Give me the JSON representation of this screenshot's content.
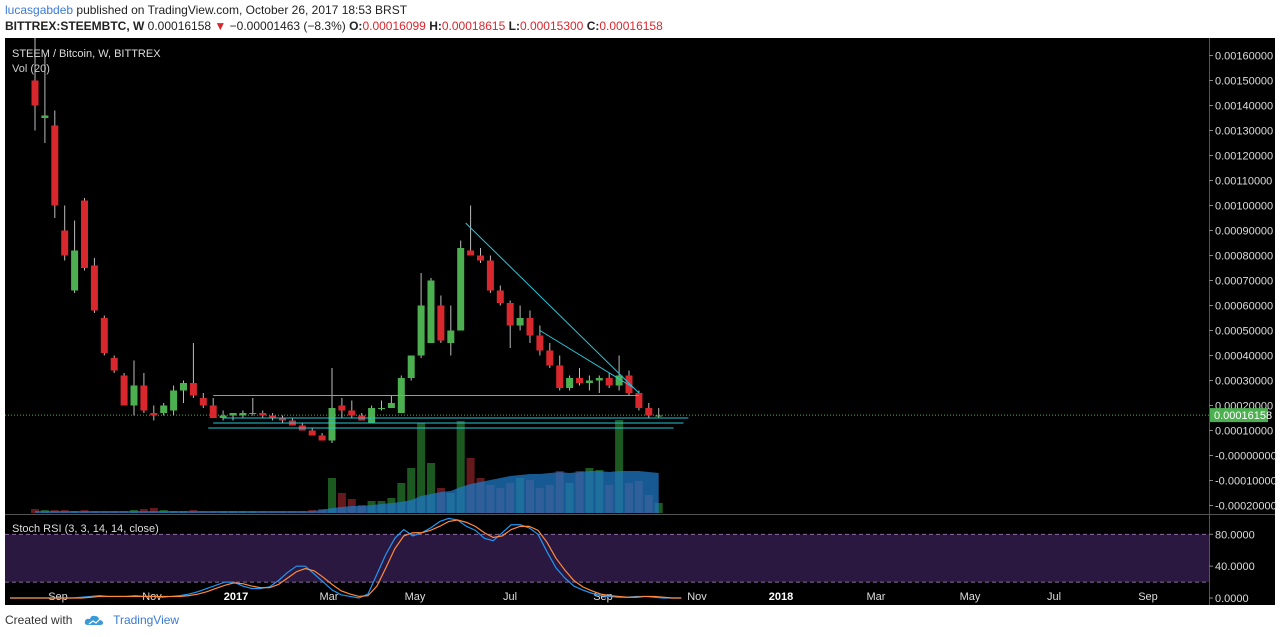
{
  "header": {
    "username": "lucasgabdeb",
    "published": "published on TradingView.com, October 26, 2017 18:53 BRST",
    "symbol": "BITTREX:STEEMBTC, W",
    "price": "0.00016158",
    "change": "−0.00001463 (−8.3%)",
    "o_label": "O:",
    "o_value": "0.00016099",
    "h_label": "H:",
    "h_value": "0.00018615",
    "l_label": "L:",
    "l_value": "0.00015300",
    "c_label": "C:",
    "c_value": "0.00016158"
  },
  "footer": {
    "created_with": "Created with",
    "brand": "TradingView"
  },
  "colors": {
    "background": "#000000",
    "up": "#4caf50",
    "down": "#d9272e",
    "volume_ma": "#1f77c4",
    "trendline": "#26c6da",
    "stoch_k": "#2196f3",
    "stoch_d": "#ff8a3d",
    "stoch_band": "#2a1840",
    "last_price_bg": "#4caf50"
  },
  "chart_data": [
    {
      "type": "candlestick",
      "title": "STEEM / Bitcoin, W, BITTREX",
      "indicator_label": "Vol (20)",
      "y_ticks": [
        "0.00160000",
        "0.00150000",
        "0.00140000",
        "0.00130000",
        "0.00120000",
        "0.00110000",
        "0.00100000",
        "0.00090000",
        "0.00080000",
        "0.00070000",
        "0.00060000",
        "0.00050000",
        "0.00040000",
        "0.00030000",
        "0.00020000",
        "0.00010000",
        "-0.00000000",
        "-0.00010000",
        "-0.00020000"
      ],
      "ylim": [
        -0.00023,
        0.00167
      ],
      "x_ticks": [
        "Sep",
        "Nov",
        "2017",
        "Mar",
        "May",
        "Jul",
        "Sep",
        "Nov",
        "2018",
        "Mar",
        "May",
        "Jul",
        "Sep"
      ],
      "last_price": "0.00016158",
      "last_price_value": 0.00016158,
      "candles": [
        [
          0.0015,
          0.00167,
          0.0013,
          0.0014
        ],
        [
          0.00135,
          0.0016,
          0.00125,
          0.00136
        ],
        [
          0.00132,
          0.00138,
          0.00095,
          0.001
        ],
        [
          0.0009,
          0.001,
          0.00078,
          0.0008
        ],
        [
          0.00066,
          0.00094,
          0.00065,
          0.00082
        ],
        [
          0.00102,
          0.00103,
          0.00074,
          0.00075
        ],
        [
          0.00076,
          0.00079,
          0.00057,
          0.00058
        ],
        [
          0.00055,
          0.00056,
          0.0004,
          0.00041
        ],
        [
          0.00039,
          0.0004,
          0.00033,
          0.00034
        ],
        [
          0.00032,
          0.00033,
          0.0002,
          0.0002
        ],
        [
          0.0002,
          0.00038,
          0.00016,
          0.00028
        ],
        [
          0.00028,
          0.00033,
          0.00017,
          0.00018
        ],
        [
          0.00017,
          0.0002,
          0.00014,
          0.00016
        ],
        [
          0.00017,
          0.00021,
          0.00016,
          0.0002
        ],
        [
          0.00018,
          0.00028,
          0.00016,
          0.00026
        ],
        [
          0.00026,
          0.0003,
          0.00021,
          0.00029
        ],
        [
          0.00029,
          0.00045,
          0.00023,
          0.00024
        ],
        [
          0.00023,
          0.00025,
          0.00019,
          0.0002
        ],
        [
          0.0002,
          0.00023,
          0.00015,
          0.00015
        ],
        [
          0.00015,
          0.00018,
          0.00014,
          0.00016
        ],
        [
          0.00016,
          0.00017,
          0.00014,
          0.00017
        ],
        [
          0.00016,
          0.00018,
          0.00015,
          0.00017
        ],
        [
          0.00017,
          0.00023,
          0.00016,
          0.00017
        ],
        [
          0.00017,
          0.00018,
          0.00015,
          0.00016
        ],
        [
          0.00016,
          0.00017,
          0.00014,
          0.00015
        ],
        [
          0.00015,
          0.00016,
          0.00013,
          0.00014
        ],
        [
          0.00014,
          0.00015,
          0.00012,
          0.00012
        ],
        [
          0.00012,
          0.00013,
          0.0001,
          0.0001
        ],
        [
          0.0001,
          0.00011,
          8e-05,
          8e-05
        ],
        [
          8e-05,
          9e-05,
          6e-05,
          6e-05
        ],
        [
          6e-05,
          0.00035,
          5e-05,
          0.00019
        ],
        [
          0.0002,
          0.00023,
          0.00015,
          0.00018
        ],
        [
          0.00018,
          0.00022,
          0.00015,
          0.00016
        ],
        [
          0.00016,
          0.00017,
          0.00014,
          0.00014
        ],
        [
          0.00013,
          0.0002,
          0.00013,
          0.00019
        ],
        [
          0.00019,
          0.00022,
          0.00018,
          0.00019
        ],
        [
          0.00019,
          0.00024,
          0.00019,
          0.00021
        ],
        [
          0.00017,
          0.00032,
          0.00017,
          0.00031
        ],
        [
          0.00031,
          0.0004,
          0.0003,
          0.0004
        ],
        [
          0.0004,
          0.00073,
          0.00039,
          0.0006
        ],
        [
          0.00045,
          0.00071,
          0.00045,
          0.0007
        ],
        [
          0.0006,
          0.00064,
          0.00045,
          0.00046
        ],
        [
          0.00045,
          0.0006,
          0.0004,
          0.0005
        ],
        [
          0.0005,
          0.00086,
          0.0005,
          0.00083
        ],
        [
          0.00082,
          0.001,
          0.0008,
          0.0008
        ],
        [
          0.0008,
          0.00083,
          0.00077,
          0.00078
        ],
        [
          0.00078,
          0.0008,
          0.00065,
          0.00066
        ],
        [
          0.00066,
          0.00068,
          0.0006,
          0.00061
        ],
        [
          0.00061,
          0.00062,
          0.00043,
          0.00052
        ],
        [
          0.00052,
          0.0006,
          0.0005,
          0.00055
        ],
        [
          0.00055,
          0.00058,
          0.00045,
          0.00048
        ],
        [
          0.00048,
          0.00052,
          0.0004,
          0.00042
        ],
        [
          0.00042,
          0.00045,
          0.00035,
          0.00036
        ],
        [
          0.00036,
          0.0004,
          0.00026,
          0.00027
        ],
        [
          0.00027,
          0.00032,
          0.00026,
          0.00031
        ],
        [
          0.00031,
          0.00035,
          0.00028,
          0.00029
        ],
        [
          0.00029,
          0.00032,
          0.00026,
          0.0003
        ],
        [
          0.0003,
          0.00032,
          0.00025,
          0.00031
        ],
        [
          0.00031,
          0.00033,
          0.00027,
          0.00028
        ],
        [
          0.00028,
          0.0004,
          0.00026,
          0.00032
        ],
        [
          0.00032,
          0.00034,
          0.00024,
          0.00025
        ],
        [
          0.00025,
          0.00026,
          0.00018,
          0.00019
        ],
        [
          0.00019,
          0.00021,
          0.00015,
          0.00016
        ],
        [
          0.00016,
          0.00019,
          0.00015,
          0.00016
        ]
      ],
      "volume": [
        0.04,
        0.03,
        0.03,
        0.03,
        0.02,
        0.03,
        0.02,
        0.02,
        0.02,
        0.02,
        0.03,
        0.04,
        0.05,
        0.03,
        0.02,
        0.02,
        0.03,
        0.02,
        0.02,
        0.02,
        0.02,
        0.02,
        0.02,
        0.02,
        0.02,
        0.02,
        0.02,
        0.02,
        0.03,
        0.04,
        0.35,
        0.2,
        0.14,
        0.08,
        0.12,
        0.12,
        0.15,
        0.3,
        0.45,
        0.9,
        0.5,
        0.25,
        0.2,
        0.92,
        0.55,
        0.35,
        0.28,
        0.25,
        0.3,
        0.35,
        0.33,
        0.25,
        0.28,
        0.42,
        0.3,
        0.42,
        0.45,
        0.43,
        0.28,
        0.93,
        0.3,
        0.32,
        0.18,
        0.1
      ],
      "volume_ma": [
        0.02,
        0.02,
        0.02,
        0.02,
        0.02,
        0.02,
        0.02,
        0.02,
        0.02,
        0.02,
        0.02,
        0.02,
        0.02,
        0.02,
        0.02,
        0.02,
        0.02,
        0.02,
        0.02,
        0.02,
        0.02,
        0.02,
        0.02,
        0.02,
        0.02,
        0.02,
        0.02,
        0.02,
        0.02,
        0.03,
        0.05,
        0.06,
        0.07,
        0.07,
        0.08,
        0.09,
        0.1,
        0.11,
        0.13,
        0.17,
        0.19,
        0.21,
        0.22,
        0.26,
        0.29,
        0.31,
        0.33,
        0.35,
        0.37,
        0.38,
        0.39,
        0.39,
        0.4,
        0.41,
        0.4,
        0.41,
        0.42,
        0.42,
        0.41,
        0.42,
        0.42,
        0.42,
        0.41,
        0.4
      ],
      "trendlines": [
        {
          "from": [
            43.5,
            0.00093
          ],
          "to": [
            61,
            0.00025
          ]
        },
        {
          "from": [
            51,
            0.0005
          ],
          "to": [
            60.5,
            0.00027
          ]
        },
        {
          "from": [
            18,
            0.00024
          ],
          "to": [
            61,
            0.00024
          ]
        },
        {
          "from": [
            17.5,
            0.00011
          ],
          "to": [
            64.5,
            0.00011
          ]
        },
        {
          "from": [
            19,
            0.00015
          ],
          "to": [
            66,
            0.00015
          ]
        },
        {
          "from": [
            18,
            0.00013
          ],
          "to": [
            65.5,
            0.00013
          ]
        }
      ]
    },
    {
      "type": "line",
      "title": "Stoch RSI (3, 3, 14, 14, close)",
      "y_ticks": [
        "80.0000",
        "40.0000",
        "0.0000"
      ],
      "ylim": [
        -5,
        103
      ],
      "band": [
        20,
        80
      ],
      "series": [
        {
          "values": [
            0,
            0,
            0,
            0,
            0,
            0,
            0,
            0,
            1,
            2,
            3,
            2,
            2,
            2,
            3,
            2,
            2,
            1,
            2,
            3,
            5,
            8,
            12,
            16,
            20,
            20,
            15,
            12,
            12,
            14,
            22,
            32,
            40,
            40,
            30,
            20,
            10,
            4,
            2,
            0,
            5,
            30,
            55,
            75,
            86,
            78,
            82,
            88,
            96,
            100,
            98,
            90,
            85,
            75,
            72,
            82,
            92,
            92,
            88,
            80,
            58,
            38,
            25,
            15,
            10,
            6,
            3,
            2,
            1,
            1,
            2,
            2,
            1,
            0,
            0,
            0
          ]
        },
        {
          "values": [
            0,
            0,
            0,
            0,
            0,
            0,
            0,
            0,
            0,
            1,
            2,
            2,
            2,
            2,
            2,
            2,
            2,
            2,
            2,
            2,
            3,
            5,
            8,
            12,
            16,
            19,
            18,
            15,
            13,
            13,
            17,
            25,
            33,
            37,
            34,
            26,
            17,
            9,
            5,
            2,
            3,
            15,
            38,
            62,
            78,
            82,
            82,
            85,
            90,
            96,
            98,
            95,
            90,
            82,
            76,
            78,
            86,
            90,
            90,
            85,
            70,
            50,
            35,
            22,
            14,
            9,
            5,
            3,
            2,
            1,
            1,
            2,
            2,
            1,
            0,
            0
          ]
        }
      ]
    }
  ]
}
